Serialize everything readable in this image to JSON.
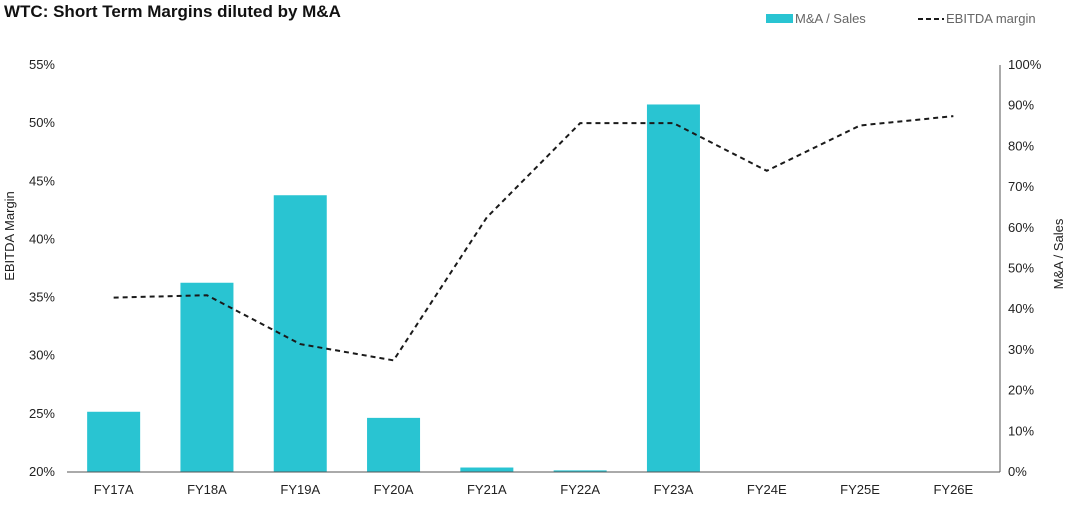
{
  "chart_data": {
    "type": "bar",
    "title": "WTC: Short Term Margins diluted by M&A",
    "categories": [
      "FY17A",
      "FY18A",
      "FY19A",
      "FY20A",
      "FY21A",
      "FY22A",
      "FY23A",
      "FY24E",
      "FY25E",
      "FY26E"
    ],
    "series": [
      {
        "name": "M&A / Sales",
        "type": "bar",
        "axis": "right",
        "color": "#29c4d2",
        "values": [
          14.8,
          46.5,
          68.0,
          13.3,
          1.1,
          0.4,
          90.3,
          0,
          0,
          0
        ]
      },
      {
        "name": "EBITDA margin",
        "type": "line",
        "style": "dashed",
        "axis": "left",
        "color": "#1a1a1a",
        "values": [
          35.0,
          35.2,
          31.0,
          29.6,
          41.9,
          50.0,
          50.0,
          45.9,
          49.8,
          50.6
        ]
      }
    ],
    "y_left": {
      "label": "EBITDA Margin",
      "range": [
        20,
        55
      ],
      "ticks": [
        "20%",
        "25%",
        "30%",
        "35%",
        "40%",
        "45%",
        "50%",
        "55%"
      ]
    },
    "y_right": {
      "label": "M&A / Sales",
      "range": [
        0,
        100
      ],
      "ticks": [
        "0%",
        "10%",
        "20%",
        "30%",
        "40%",
        "50%",
        "60%",
        "70%",
        "80%",
        "90%",
        "100%"
      ]
    },
    "legend_position": "top-right",
    "grid": false
  }
}
